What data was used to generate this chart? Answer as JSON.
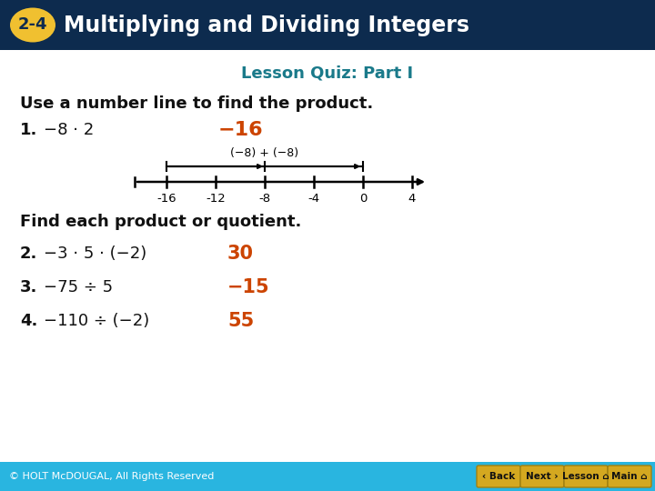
{
  "title_bar_color": "#0d2b4e",
  "title_badge_color": "#f0c030",
  "title_badge_text": "2-4",
  "title_text": "Multiplying and Dividing Integers",
  "title_text_color": "#ffffff",
  "subtitle_text": "Lesson Quiz: Part I",
  "subtitle_color": "#1a7a8a",
  "bg_color": "#ffffff",
  "footer_bar_color": "#29b5e0",
  "footer_text": "© HOLT McDOUGAL, All Rights Reserved",
  "footer_text_color": "#ffffff",
  "button_color": "#d4a820",
  "button_labels": [
    "‹ Back",
    "Next ›",
    "Lesson ⌂",
    "Main ⌂"
  ],
  "section1_text": "Use a number line to find the product.",
  "q1_label": "1.",
  "q1_problem": "−8 · 2",
  "q1_answer": "−16",
  "q2_label": "2.",
  "q2_problem": "−3 · 5 · (−2)",
  "q2_answer": "30",
  "q3_label": "3.",
  "q3_problem": "−75 ÷ 5",
  "q3_answer": "−15",
  "q4_label": "4.",
  "q4_problem": "−110 ÷ (−2)",
  "q4_answer": "55",
  "section2_text": "Find each product or quotient.",
  "answer_color_orange": "#cc4400",
  "black_text": "#111111",
  "number_line_ticks": [
    -16,
    -12,
    -8,
    -4,
    0,
    4
  ],
  "number_line_label": "(−8) + (−8)"
}
